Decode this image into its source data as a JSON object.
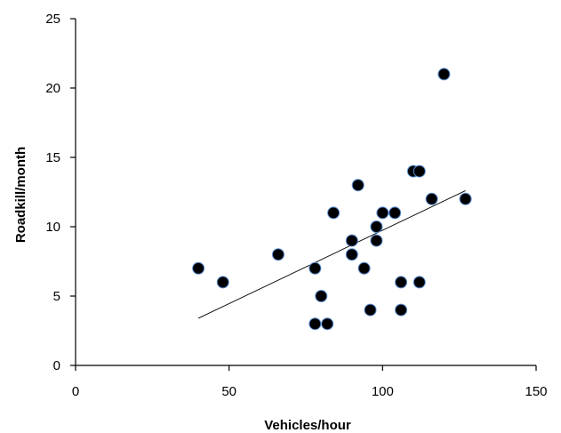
{
  "chart_data": {
    "type": "scatter",
    "title": "",
    "xlabel": "Vehicles/hour",
    "ylabel": "Roadkill/month",
    "xlim": [
      0,
      150
    ],
    "ylim": [
      0,
      25
    ],
    "x_ticks": [
      0,
      50,
      100,
      150
    ],
    "y_ticks": [
      0,
      5,
      10,
      15,
      20,
      25
    ],
    "grid": false,
    "legend": "none",
    "marker_color": "#000000",
    "marker_edge_color": "#5b8fd6",
    "trendline": {
      "type": "linear",
      "from": [
        40,
        3.4
      ],
      "to": [
        127,
        12.6
      ]
    },
    "points": [
      [
        40,
        7
      ],
      [
        48,
        6
      ],
      [
        66,
        8
      ],
      [
        78,
        7
      ],
      [
        80,
        5
      ],
      [
        78,
        3
      ],
      [
        82,
        3
      ],
      [
        84,
        11
      ],
      [
        90,
        9
      ],
      [
        90,
        8
      ],
      [
        92,
        13
      ],
      [
        94,
        7
      ],
      [
        96,
        4
      ],
      [
        98,
        10
      ],
      [
        98,
        9
      ],
      [
        100,
        11
      ],
      [
        104,
        11
      ],
      [
        106,
        6
      ],
      [
        106,
        4
      ],
      [
        110,
        14
      ],
      [
        112,
        14
      ],
      [
        112,
        6
      ],
      [
        116,
        12
      ],
      [
        120,
        21
      ],
      [
        127,
        12
      ]
    ]
  }
}
